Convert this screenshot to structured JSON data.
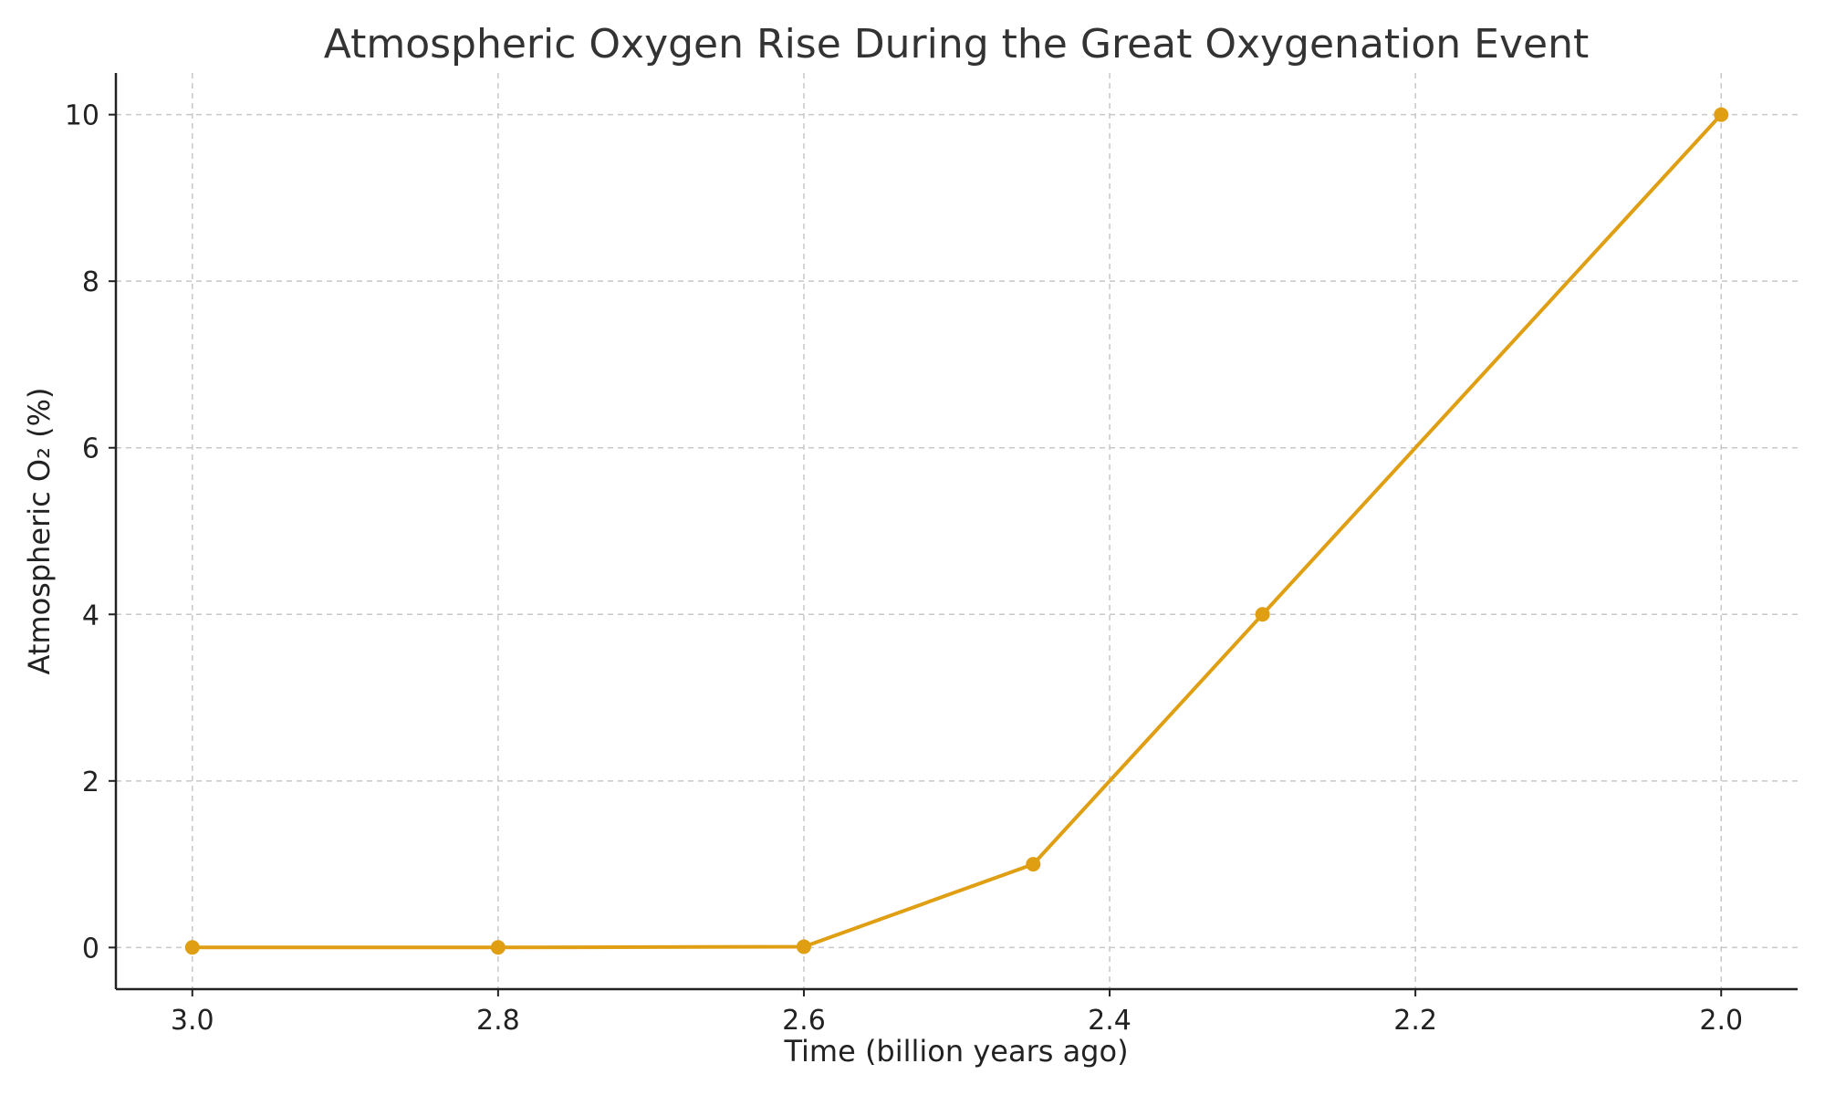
{
  "chart_data": {
    "type": "line",
    "title": "Atmospheric Oxygen Rise During the Great Oxygenation Event",
    "xlabel": "Time (billion years ago)",
    "ylabel": "Atmospheric O₂ (%)",
    "x_reversed": true,
    "xlim": [
      3.05,
      1.95
    ],
    "ylim": [
      -0.5,
      10.5
    ],
    "x_ticks": [
      3.0,
      2.8,
      2.6,
      2.4,
      2.2,
      2.0
    ],
    "x_tick_labels": [
      "3.0",
      "2.8",
      "2.6",
      "2.4",
      "2.2",
      "2.0"
    ],
    "y_ticks": [
      0,
      2,
      4,
      6,
      8,
      10
    ],
    "y_tick_labels": [
      "0",
      "2",
      "4",
      "6",
      "8",
      "10"
    ],
    "grid": true,
    "series": [
      {
        "color": "#e09f12",
        "marker": "circle",
        "x": [
          3.0,
          2.8,
          2.6,
          2.45,
          2.3,
          2.0
        ],
        "y": [
          0.001,
          0.001,
          0.01,
          1,
          4,
          10
        ]
      }
    ]
  }
}
